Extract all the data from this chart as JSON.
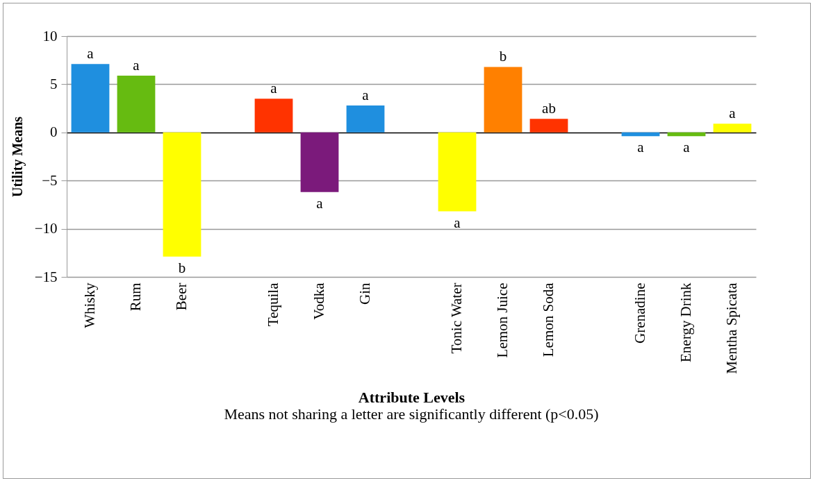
{
  "chart_data": {
    "type": "bar",
    "xlabel": "Attribute Levels",
    "ylabel": "Utility Means",
    "categories": [
      "Whisky",
      "Rum",
      "Beer",
      null,
      "Tequila",
      "Vodka",
      "Gin",
      null,
      "Tonic Water",
      "Lemon Juice",
      "Lemon Soda",
      null,
      "Grenadine",
      "Energy Drink",
      "Mentha Spicata"
    ],
    "values": [
      7.1,
      5.9,
      -12.9,
      null,
      3.5,
      -6.2,
      2.8,
      null,
      -8.2,
      6.8,
      1.4,
      null,
      -0.4,
      -0.4,
      0.9
    ],
    "colors": [
      "#1f8fdf",
      "#66bb11",
      "#ffff00",
      null,
      "#ff3300",
      "#7b1a7b",
      "#1f8fdf",
      null,
      "#ffff00",
      "#ff8000",
      "#ff3300",
      null,
      "#1f8fdf",
      "#66bb11",
      "#ffff00"
    ],
    "value_labels": [
      "a",
      "a",
      "b",
      null,
      "a",
      "a",
      "a",
      null,
      "a",
      "b",
      "ab",
      null,
      "a",
      "a",
      "a"
    ],
    "ylim": [
      -15,
      10
    ],
    "yticks": [
      -15,
      -10,
      -5,
      0,
      5,
      10
    ],
    "grid": "y",
    "annotations": [
      "Means not sharing a letter are significantly different (p<0.05)"
    ]
  }
}
